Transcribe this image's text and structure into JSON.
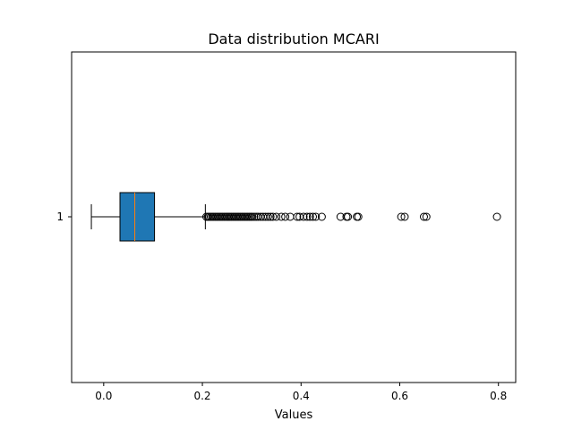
{
  "chart_data": {
    "type": "boxplot",
    "orientation": "horizontal",
    "title": "Data distribution MCARI",
    "xlabel": "Values",
    "ylabel": "",
    "xlim": [
      -0.065,
      0.835
    ],
    "x_ticks": [
      0.0,
      0.2,
      0.4,
      0.6,
      0.8
    ],
    "x_tick_labels": [
      "0.0",
      "0.2",
      "0.4",
      "0.6",
      "0.8"
    ],
    "y_tick_labels": [
      "1"
    ],
    "grid": false,
    "legend": "none",
    "box": {
      "category": "1",
      "whisker_low": -0.025,
      "q1": 0.033,
      "median": 0.063,
      "q3": 0.103,
      "whisker_high": 0.206,
      "fill_color": "#1f77b4",
      "median_color": "#ff7f0e"
    },
    "outliers": [
      0.208,
      0.211,
      0.214,
      0.217,
      0.22,
      0.223,
      0.226,
      0.229,
      0.232,
      0.235,
      0.238,
      0.241,
      0.244,
      0.247,
      0.25,
      0.253,
      0.256,
      0.259,
      0.262,
      0.265,
      0.268,
      0.271,
      0.274,
      0.277,
      0.28,
      0.283,
      0.286,
      0.289,
      0.292,
      0.295,
      0.298,
      0.301,
      0.305,
      0.309,
      0.313,
      0.318,
      0.323,
      0.328,
      0.333,
      0.338,
      0.343,
      0.35,
      0.36,
      0.368,
      0.378,
      0.392,
      0.397,
      0.405,
      0.412,
      0.418,
      0.424,
      0.43,
      0.442,
      0.48,
      0.492,
      0.495,
      0.513,
      0.516,
      0.603,
      0.61,
      0.649,
      0.654,
      0.797
    ]
  }
}
